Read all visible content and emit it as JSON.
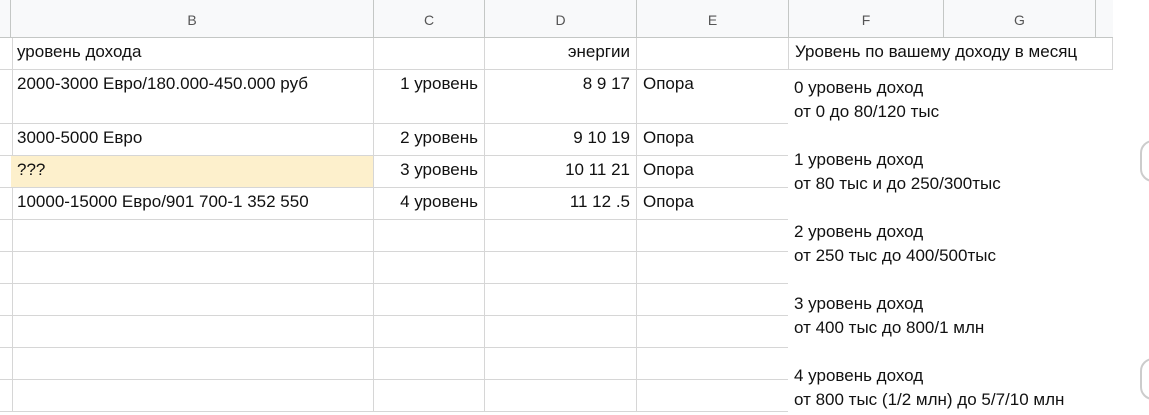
{
  "columns": [
    "B",
    "C",
    "D",
    "E",
    "F",
    "G"
  ],
  "header_row": {
    "b": "уровень дохода",
    "c": "",
    "d": "энергии",
    "e": "",
    "f": "Уровень по вашему доходу в месяц"
  },
  "rows": [
    {
      "b": "2000-3000 Евро/180.000-450.000 руб",
      "c": "1 уровень",
      "d": "8 9 17",
      "e": "Опора"
    },
    {
      "b": "3000-5000 Евро",
      "c": "2 уровень",
      "d": "9 10 19",
      "e": "Опора"
    },
    {
      "b": "???",
      "c": "3 уровень",
      "d": "10 11 21",
      "e": "Опора",
      "highlight": "#fdf0cc"
    },
    {
      "b": "10000-15000 Евро/901 700-1 352 550",
      "c": "4 уровень",
      "d": "11 12 .5",
      "e": "Опора"
    }
  ],
  "levels": [
    {
      "title": "0 уровень доход",
      "range": "от 0 до 80/120 тыс"
    },
    {
      "title": "1 уровень доход",
      "range": "от 80 тыс и до 250/300тыс"
    },
    {
      "title": "2 уровень доход",
      "range": "от 250 тыс до 400/500тыс"
    },
    {
      "title": "3 уровень доход",
      "range": "от 400 тыс до 800/1 млн"
    },
    {
      "title": "4 уровень доход",
      "range": "от 800 тыс (1/2 млн) до 5/7/10 млн"
    }
  ]
}
